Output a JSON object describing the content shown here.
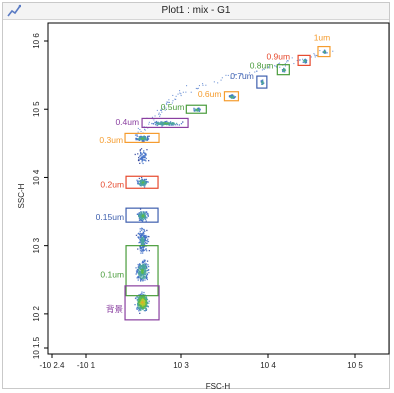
{
  "window": {
    "title": "Plot1 : mix - G1",
    "icon": "plot-icon"
  },
  "chart_data": {
    "type": "scatter",
    "title": "Plot1 : mix - G1",
    "xlabel": "FSC-H",
    "ylabel": "SSC-H",
    "x_scale": "log",
    "y_scale": "log",
    "xlim": [
      -263,
      300000
    ],
    "ylim": [
      31.6,
      1500000
    ],
    "x_ticks": [
      {
        "label": "-10 2.4",
        "value": -263
      },
      {
        "label": "-10 1",
        "value": -10
      },
      {
        "label": "10 3",
        "value": 1000
      },
      {
        "label": "10 4",
        "value": 10000
      },
      {
        "label": "10 5",
        "value": 100000
      }
    ],
    "y_ticks": [
      {
        "label": "10 1.5",
        "value": 31.6
      },
      {
        "label": "10 2",
        "value": 100
      },
      {
        "label": "10 3",
        "value": 1000
      },
      {
        "label": "10 4",
        "value": 10000
      },
      {
        "label": "10 5",
        "value": 100000
      },
      {
        "label": "10 6",
        "value": 1000000
      }
    ],
    "grid": false,
    "colors": {
      "purple": "#8a3fa0",
      "orange": "#f59c2e",
      "red": "#e6492d",
      "blue": "#3e5fae",
      "green": "#4a9c3c"
    },
    "gates": [
      {
        "label": "1um",
        "color": "#f59c2e",
        "fsc": 44000,
        "ssc": 700000
      },
      {
        "label": "0.9um",
        "color": "#e6492d",
        "fsc": 26000,
        "ssc": 520000
      },
      {
        "label": "0.8um",
        "color": "#4a9c3c",
        "fsc": 15000,
        "ssc": 380000
      },
      {
        "label": "0.7um",
        "color": "#3e5fae",
        "fsc": 8500,
        "ssc": 250000
      },
      {
        "label": "0.6um",
        "color": "#f59c2e",
        "fsc": 3800,
        "ssc": 155000
      },
      {
        "label": "0.5um",
        "color": "#4a9c3c",
        "fsc": 1500,
        "ssc": 100000
      },
      {
        "label": "0.4um",
        "color": "#8a3fa0",
        "fsc": 210,
        "ssc": 63000
      },
      {
        "label": "0.3um",
        "color": "#f59c2e",
        "fsc": 22,
        "ssc": 38000
      },
      {
        "label": "0.2um",
        "color": "#e6492d",
        "fsc": 22,
        "ssc": 8500
      },
      {
        "label": "0.15um",
        "color": "#3e5fae",
        "fsc": 22,
        "ssc": 2800
      },
      {
        "label": "0.1um",
        "color": "#4a9c3c",
        "fsc": 22,
        "ssc": 430
      },
      {
        "label": "背景",
        "color": "#8a3fa0",
        "fsc": 22,
        "ssc": 145
      }
    ]
  }
}
